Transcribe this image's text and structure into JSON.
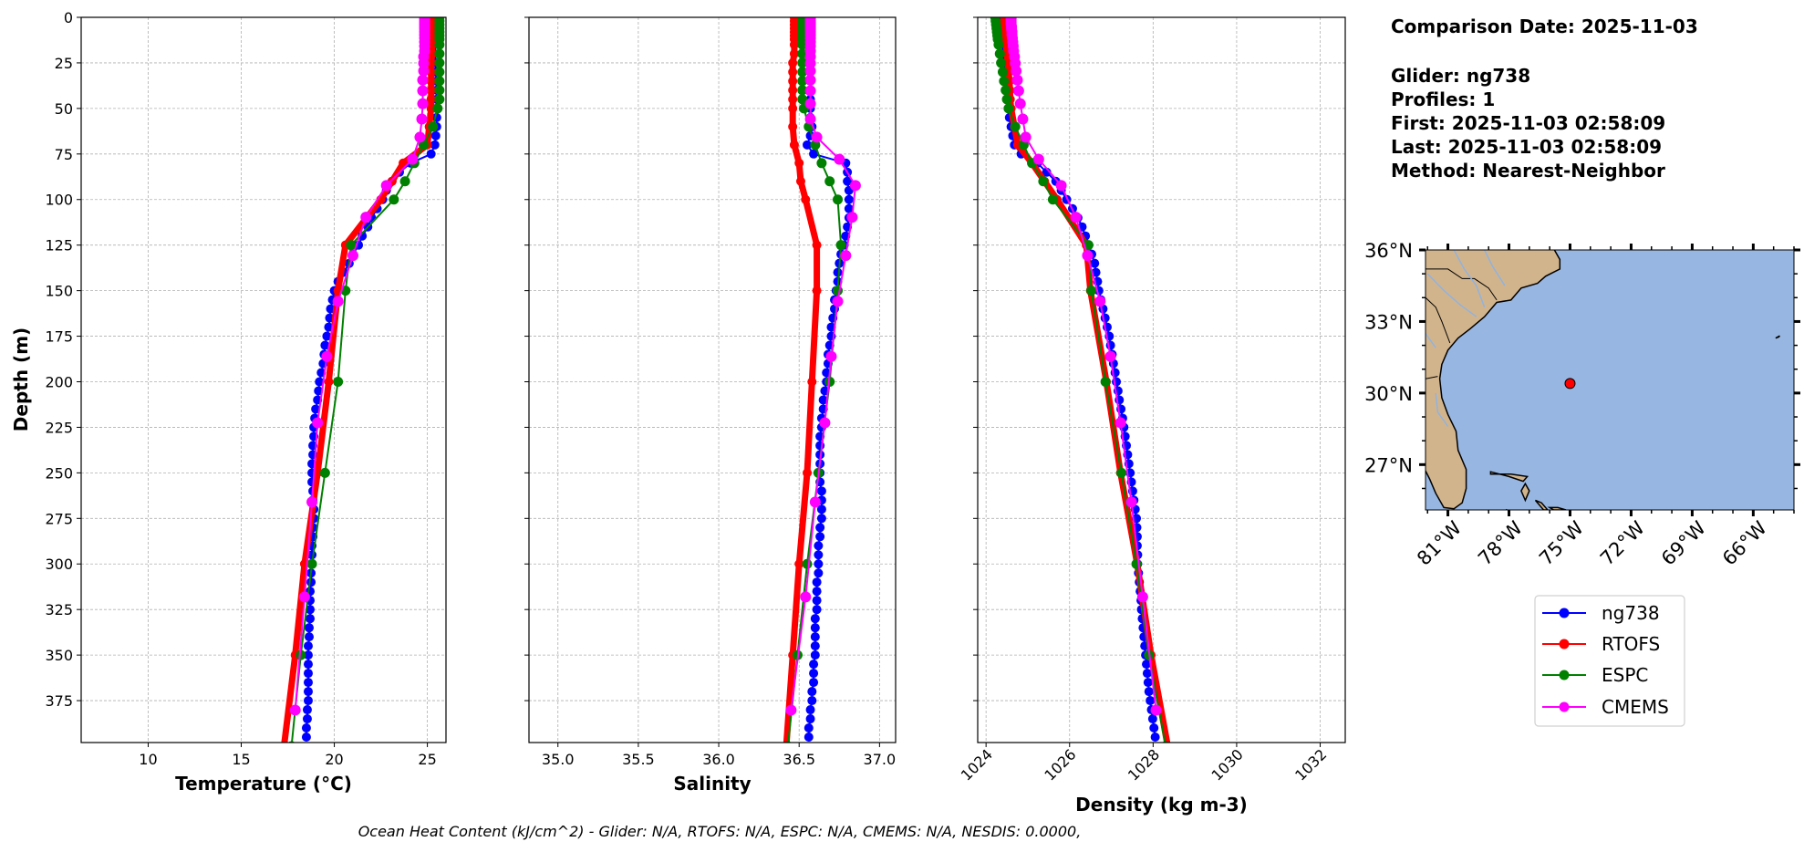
{
  "info": {
    "comparison_date": "Comparison Date: 2025-11-03",
    "glider": "Glider: ng738",
    "profiles": "Profiles: 1",
    "first": "First: 2025-11-03 02:58:09",
    "last": "Last: 2025-11-03 02:58:09",
    "method": "Method: Nearest-Neighbor"
  },
  "footnote": "Ocean Heat Content (kJ/cm^2) - Glider: N/A,  RTOFS: N/A,  ESPC: N/A,  CMEMS: N/A,  NESDIS: 0.0000,",
  "chart_data": {
    "type": "line",
    "ylabel": "Depth (m)",
    "ylim": [
      398,
      0
    ],
    "yticks": [
      0,
      25,
      50,
      75,
      100,
      125,
      150,
      175,
      200,
      225,
      250,
      275,
      300,
      325,
      350,
      375
    ],
    "grid": true,
    "legend_placement": "right, below map",
    "panels": [
      {
        "variable": "temperature",
        "xlabel": "Temperature (°C)",
        "xlim": [
          6.4,
          26.0
        ],
        "xticks": [
          10,
          15,
          20,
          25
        ],
        "xtick_labels": [
          "10",
          "15",
          "20",
          "25"
        ],
        "ytick_labels_shown": true
      },
      {
        "variable": "salinity",
        "xlabel": "Salinity",
        "xlim": [
          34.82,
          37.1
        ],
        "xticks": [
          35.0,
          35.5,
          36.0,
          36.5,
          37.0
        ],
        "xtick_labels": [
          "35.0",
          "35.5",
          "36.0",
          "36.5",
          "37.0"
        ],
        "ytick_labels_shown": false
      },
      {
        "variable": "density",
        "xlabel": "Density (kg m-3)",
        "xlim": [
          1023.8,
          1032.6
        ],
        "xticks": [
          1024,
          1026,
          1028,
          1030,
          1032
        ],
        "xtick_labels": [
          "1024",
          "1026",
          "1028",
          "1030",
          "1032"
        ],
        "xtick_rotation": 45,
        "ytick_labels_shown": false
      }
    ],
    "series": [
      {
        "name": "ng738",
        "color": "#0000ff",
        "depth": [
          0,
          5,
          10,
          15,
          20,
          25,
          30,
          35,
          40,
          45,
          50,
          55,
          60,
          65,
          70,
          75,
          80,
          85,
          90,
          95,
          100,
          105,
          110,
          115,
          120,
          125,
          130,
          135,
          140,
          145,
          150,
          155,
          160,
          165,
          170,
          175,
          180,
          185,
          190,
          195,
          200,
          205,
          210,
          215,
          220,
          225,
          230,
          235,
          240,
          245,
          250,
          255,
          260,
          265,
          270,
          275,
          280,
          285,
          290,
          295,
          300,
          305,
          310,
          315,
          320,
          325,
          330,
          335,
          340,
          345,
          350,
          355,
          360,
          365,
          370,
          375,
          380,
          385,
          390,
          395
        ],
        "temperature": [
          25.4,
          25.4,
          25.4,
          25.4,
          25.4,
          25.45,
          25.45,
          25.5,
          25.5,
          25.5,
          25.5,
          25.5,
          25.5,
          25.45,
          25.4,
          25.2,
          24.1,
          23.5,
          23.1,
          22.8,
          22.6,
          22.3,
          22.0,
          21.8,
          21.5,
          21.3,
          21.0,
          20.8,
          20.5,
          20.2,
          20.0,
          19.9,
          19.8,
          19.75,
          19.7,
          19.6,
          19.5,
          19.45,
          19.4,
          19.3,
          19.2,
          19.15,
          19.1,
          19.0,
          18.95,
          18.9,
          18.9,
          18.85,
          18.85,
          18.8,
          18.8,
          18.8,
          18.85,
          18.85,
          18.9,
          18.9,
          18.85,
          18.85,
          18.8,
          18.8,
          18.8,
          18.75,
          18.75,
          18.7,
          18.7,
          18.7,
          18.7,
          18.65,
          18.65,
          18.6,
          18.6,
          18.6,
          18.6,
          18.6,
          18.6,
          18.6,
          18.55,
          18.55,
          18.5,
          18.5
        ],
        "salinity": [
          36.57,
          36.57,
          36.57,
          36.57,
          36.57,
          36.57,
          36.57,
          36.57,
          36.57,
          36.57,
          36.57,
          36.57,
          36.58,
          36.57,
          36.55,
          36.59,
          36.79,
          36.8,
          36.8,
          36.81,
          36.81,
          36.81,
          36.81,
          36.8,
          36.79,
          36.78,
          36.76,
          36.75,
          36.74,
          36.74,
          36.73,
          36.72,
          36.72,
          36.71,
          36.7,
          36.7,
          36.69,
          36.68,
          36.68,
          36.67,
          36.67,
          36.66,
          36.65,
          36.65,
          36.64,
          36.64,
          36.63,
          36.63,
          36.63,
          36.63,
          36.63,
          36.63,
          36.64,
          36.64,
          36.64,
          36.64,
          36.63,
          36.63,
          36.62,
          36.62,
          36.62,
          36.62,
          36.61,
          36.61,
          36.61,
          36.61,
          36.6,
          36.6,
          36.6,
          36.6,
          36.6,
          36.59,
          36.59,
          36.59,
          36.58,
          36.58,
          36.57,
          36.57,
          36.56,
          36.56
        ],
        "density": [
          1024.38,
          1024.38,
          1024.39,
          1024.4,
          1024.41,
          1024.42,
          1024.44,
          1024.46,
          1024.48,
          1024.5,
          1024.53,
          1024.56,
          1024.6,
          1024.64,
          1024.68,
          1024.84,
          1025.23,
          1025.45,
          1025.67,
          1025.8,
          1025.93,
          1026.07,
          1026.2,
          1026.3,
          1026.38,
          1026.46,
          1026.53,
          1026.6,
          1026.63,
          1026.67,
          1026.7,
          1026.75,
          1026.8,
          1026.85,
          1026.9,
          1026.95,
          1026.98,
          1027.02,
          1027.05,
          1027.09,
          1027.12,
          1027.16,
          1027.19,
          1027.23,
          1027.27,
          1027.3,
          1027.33,
          1027.36,
          1027.39,
          1027.42,
          1027.45,
          1027.48,
          1027.51,
          1027.54,
          1027.57,
          1027.6,
          1027.61,
          1027.62,
          1027.62,
          1027.63,
          1027.63,
          1027.65,
          1027.67,
          1027.69,
          1027.71,
          1027.72,
          1027.74,
          1027.76,
          1027.78,
          1027.8,
          1027.82,
          1027.84,
          1027.86,
          1027.88,
          1027.9,
          1027.93,
          1027.96,
          1027.99,
          1028.02,
          1028.05
        ]
      },
      {
        "name": "RTOFS",
        "color": "#ff0000",
        "depth": [
          0,
          2,
          4,
          6,
          8,
          10,
          12,
          15,
          20,
          25,
          30,
          35,
          40,
          45,
          50,
          60,
          70,
          80,
          90,
          100,
          125,
          150,
          200,
          250,
          300,
          350,
          400
        ],
        "temperature": [
          25.25,
          25.25,
          25.25,
          25.25,
          25.25,
          25.25,
          25.25,
          25.25,
          25.25,
          25.2,
          25.2,
          25.2,
          25.2,
          25.2,
          25.2,
          25.1,
          25.0,
          23.7,
          23.1,
          22.5,
          20.6,
          20.2,
          19.7,
          19.1,
          18.4,
          17.9,
          17.3
        ],
        "salinity": [
          36.47,
          36.47,
          36.47,
          36.47,
          36.47,
          36.47,
          36.47,
          36.47,
          36.47,
          36.46,
          36.46,
          36.46,
          36.46,
          36.46,
          36.46,
          36.46,
          36.47,
          36.5,
          36.51,
          36.54,
          36.61,
          36.61,
          36.58,
          36.55,
          36.5,
          36.46,
          36.42
        ],
        "density": [
          1024.45,
          1024.45,
          1024.45,
          1024.46,
          1024.46,
          1024.47,
          1024.47,
          1024.48,
          1024.5,
          1024.52,
          1024.54,
          1024.56,
          1024.57,
          1024.58,
          1024.6,
          1024.68,
          1024.76,
          1025.1,
          1025.4,
          1025.7,
          1026.4,
          1026.5,
          1026.88,
          1027.22,
          1027.62,
          1027.95,
          1028.35
        ]
      },
      {
        "name": "ESPC",
        "color": "#008000",
        "depth": [
          0,
          2,
          4,
          6,
          8,
          10,
          12,
          15,
          20,
          25,
          30,
          35,
          40,
          45,
          50,
          60,
          70,
          80,
          90,
          100,
          125,
          150,
          200,
          250,
          300,
          350,
          400
        ],
        "temperature": [
          25.65,
          25.65,
          25.65,
          25.65,
          25.65,
          25.65,
          25.65,
          25.65,
          25.65,
          25.65,
          25.65,
          25.65,
          25.65,
          25.65,
          25.55,
          25.3,
          24.8,
          24.3,
          23.8,
          23.2,
          20.9,
          20.6,
          20.2,
          19.5,
          18.8,
          18.2,
          17.7
        ],
        "salinity": [
          36.52,
          36.52,
          36.52,
          36.52,
          36.52,
          36.52,
          36.52,
          36.52,
          36.52,
          36.52,
          36.52,
          36.52,
          36.52,
          36.52,
          36.53,
          36.56,
          36.6,
          36.64,
          36.69,
          36.74,
          36.76,
          36.74,
          36.69,
          36.62,
          36.55,
          36.49,
          36.43
        ],
        "density": [
          1024.22,
          1024.23,
          1024.24,
          1024.25,
          1024.26,
          1024.27,
          1024.28,
          1024.3,
          1024.33,
          1024.36,
          1024.4,
          1024.43,
          1024.47,
          1024.5,
          1024.54,
          1024.7,
          1024.9,
          1025.1,
          1025.37,
          1025.6,
          1026.45,
          1026.52,
          1026.86,
          1027.24,
          1027.6,
          1027.9,
          1028.3
        ]
      },
      {
        "name": "CMEMS",
        "color": "#ff00ff",
        "depth": [
          0.5,
          1.5,
          2.6,
          3.8,
          5.1,
          6.4,
          7.9,
          9.6,
          11.4,
          13.5,
          15.8,
          18.5,
          21.6,
          25.2,
          29.4,
          34.4,
          40.3,
          47.4,
          55.8,
          65.8,
          77.9,
          92.3,
          109.7,
          130.7,
          155.9,
          186.1,
          222.5,
          266.0,
          318.1,
          380.2
        ],
        "temperature": [
          24.85,
          24.85,
          24.85,
          24.85,
          24.85,
          24.85,
          24.85,
          24.85,
          24.85,
          24.85,
          24.85,
          24.85,
          24.8,
          24.8,
          24.8,
          24.75,
          24.75,
          24.75,
          24.7,
          24.6,
          24.2,
          22.8,
          21.7,
          21.0,
          20.2,
          19.6,
          19.1,
          18.8,
          18.4,
          17.9
        ],
        "salinity": [
          36.57,
          36.57,
          36.57,
          36.57,
          36.57,
          36.57,
          36.57,
          36.57,
          36.57,
          36.57,
          36.57,
          36.57,
          36.57,
          36.57,
          36.57,
          36.57,
          36.57,
          36.57,
          36.57,
          36.61,
          36.75,
          36.85,
          36.83,
          36.79,
          36.74,
          36.7,
          36.66,
          36.6,
          36.54,
          36.45
        ],
        "density": [
          1024.6,
          1024.6,
          1024.6,
          1024.6,
          1024.61,
          1024.61,
          1024.62,
          1024.62,
          1024.63,
          1024.64,
          1024.65,
          1024.66,
          1024.68,
          1024.7,
          1024.72,
          1024.75,
          1024.78,
          1024.82,
          1024.88,
          1024.95,
          1025.26,
          1025.8,
          1026.15,
          1026.43,
          1026.73,
          1026.98,
          1027.22,
          1027.48,
          1027.75,
          1028.07
        ]
      }
    ]
  },
  "map": {
    "lon_range": [
      -82.1,
      -64.0
    ],
    "lat_range": [
      25.1,
      36.0
    ],
    "lat_ticks": [
      36,
      33,
      30,
      27
    ],
    "lat_tick_labels": [
      "36°N",
      "33°N",
      "30°N",
      "27°N"
    ],
    "lon_ticks": [
      -81,
      -78,
      -75,
      -72,
      -69,
      -66
    ],
    "lon_tick_labels": [
      "81°W",
      "78°W",
      "75°W",
      "72°W",
      "69°W",
      "66°W"
    ],
    "land_color": "#d2b48c",
    "ocean_color": "#97b6e1",
    "glider_position": {
      "lon": -75.0,
      "lat": 30.4,
      "color": "#ff0000"
    }
  }
}
